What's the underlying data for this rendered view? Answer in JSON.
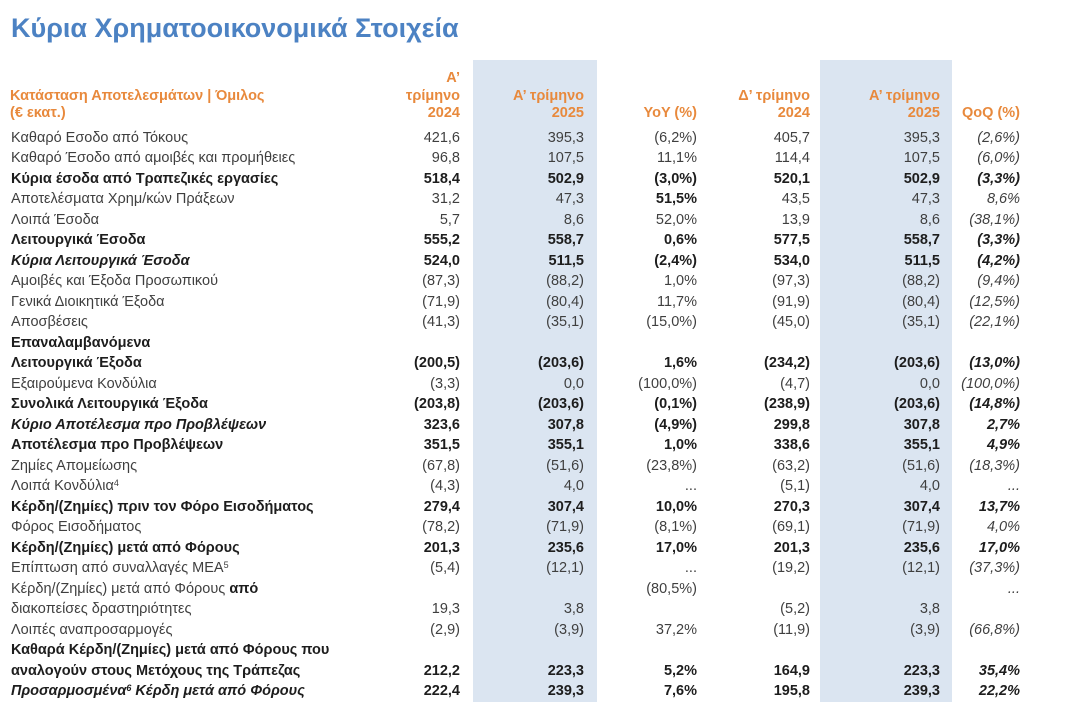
{
  "title": "Κύρια Χρηματοοικονομικά Στοιχεία",
  "colors": {
    "title_blue": "#4c82c3",
    "header_orange": "#e8893c",
    "band_blue": "#dbe5f1"
  },
  "table": {
    "header": {
      "label_line1": "Κατάσταση Αποτελεσμάτων | Όμιλος",
      "label_line2": "(€ εκατ.)",
      "columns": [
        {
          "line1": "Α’ τρίμηνο",
          "line2": "2024",
          "band": false
        },
        {
          "line1": "Α’ τρίμηνο",
          "line2": "2025",
          "band": true
        },
        {
          "line1": "",
          "line2": "YoY (%)",
          "band": false
        },
        {
          "line1": "Δ’ τρίμηνο",
          "line2": "2024",
          "band": false
        },
        {
          "line1": "Α’ τρίμηνο",
          "line2": "2025",
          "band": true
        },
        {
          "line1": "",
          "line2": "QoQ (%)",
          "band": false
        }
      ]
    },
    "rows": [
      {
        "style": "r",
        "label": [
          {
            "t": "Καθαρό Εσοδο από Τόκους"
          }
        ],
        "values": [
          "421,6",
          "395,3",
          "(6,2%)",
          "405,7",
          "395,3",
          "(2,6%)"
        ]
      },
      {
        "style": "r",
        "label": [
          {
            "t": "Καθαρό Έσοδο από αμοιβές και προμήθειες"
          }
        ],
        "values": [
          "96,8",
          "107,5",
          "11,1%",
          "114,4",
          "107,5",
          "(6,0%)"
        ]
      },
      {
        "style": "b",
        "label": [
          {
            "t": "Κύρια έσοδα από Τραπεζικές εργασίες"
          }
        ],
        "values": [
          "518,4",
          "502,9",
          "(3,0%)",
          "520,1",
          "502,9",
          "(3,3%)"
        ]
      },
      {
        "style": "r",
        "label": [
          {
            "t": "Αποτελέσματα Χρημ/κών Πράξεων"
          }
        ],
        "values": [
          "31,2",
          "47,3",
          "51,5%",
          "43,5",
          "47,3",
          "8,6%"
        ],
        "bold_cells": [
          2
        ]
      },
      {
        "style": "r",
        "label": [
          {
            "t": "Λοιπά Έσοδα"
          }
        ],
        "values": [
          "5,7",
          "8,6",
          "52,0%",
          "13,9",
          "8,6",
          "(38,1%)"
        ]
      },
      {
        "style": "b",
        "label": [
          {
            "t": "Λειτουργικά Έσοδα"
          }
        ],
        "values": [
          "555,2",
          "558,7",
          "0,6%",
          "577,5",
          "558,7",
          "(3,3%)"
        ]
      },
      {
        "style": "bi",
        "label": [
          {
            "t": "Κύρια Λειτουργικά Έσοδα"
          }
        ],
        "values": [
          "524,0",
          "511,5",
          "(2,4%)",
          "534,0",
          "511,5",
          "(4,2%)"
        ]
      },
      {
        "style": "r",
        "label": [
          {
            "t": "Αμοιβές και Έξοδα Προσωπικού"
          }
        ],
        "values": [
          "(87,3)",
          "(88,2)",
          "1,0%",
          "(97,3)",
          "(88,2)",
          "(9,4%)"
        ]
      },
      {
        "style": "r",
        "label": [
          {
            "t": "Γενικά Διοικητικά Έξοδα"
          }
        ],
        "values": [
          "(71,9)",
          "(80,4)",
          "11,7%",
          "(91,9)",
          "(80,4)",
          "(12,5%)"
        ]
      },
      {
        "style": "r",
        "label": [
          {
            "t": "Αποσβέσεις"
          }
        ],
        "values": [
          "(41,3)",
          "(35,1)",
          "(15,0%)",
          "(45,0)",
          "(35,1)",
          "(22,1%)"
        ]
      },
      {
        "style": "b",
        "label": [
          {
            "t": "Επαναλαμβανόμενα"
          },
          {
            "br": true
          },
          {
            "t": "Λειτουργικά Έξοδα"
          }
        ],
        "values": [
          "(200,5)",
          "(203,6)",
          "1,6%",
          "(234,2)",
          "(203,6)",
          "(13,0%)"
        ]
      },
      {
        "style": "r",
        "label": [
          {
            "t": "Εξαιρούμενα Κονδύλια"
          }
        ],
        "values": [
          "(3,3)",
          "0,0",
          "(100,0%)",
          "(4,7)",
          "0,0",
          "(100,0%)"
        ]
      },
      {
        "style": "b",
        "label": [
          {
            "t": "Συνολικά Λειτουργικά Έξοδα"
          }
        ],
        "values": [
          "(203,8)",
          "(203,6)",
          "(0,1%)",
          "(238,9)",
          "(203,6)",
          "(14,8%)"
        ]
      },
      {
        "style": "bi",
        "label": [
          {
            "t": "Κύριο Αποτέλεσμα προ Προβλέψεων"
          }
        ],
        "values": [
          "323,6",
          "307,8",
          "(4,9%)",
          "299,8",
          "307,8",
          "2,7%"
        ]
      },
      {
        "style": "b",
        "label": [
          {
            "t": "Αποτέλεσμα προ Προβλέψεων"
          }
        ],
        "values": [
          "351,5",
          "355,1",
          "1,0%",
          "338,6",
          "355,1",
          "4,9%"
        ]
      },
      {
        "style": "r",
        "label": [
          {
            "t": "Ζημίες Απομείωσης"
          }
        ],
        "values": [
          "(67,8)",
          "(51,6)",
          "(23,8%)",
          "(63,2)",
          "(51,6)",
          "(18,3%)"
        ]
      },
      {
        "style": "r",
        "label": [
          {
            "t": "Λοιπά Κονδύλια"
          },
          {
            "t": "4",
            "sup": true
          }
        ],
        "values": [
          "(4,3)",
          "4,0",
          "...",
          "(5,1)",
          "4,0",
          "..."
        ]
      },
      {
        "style": "b",
        "label": [
          {
            "t": "Κέρδη/(Ζημίες) πριν τον Φόρο Εισοδήματος"
          }
        ],
        "values": [
          "279,4",
          "307,4",
          "10,0%",
          "270,3",
          "307,4",
          "13,7%"
        ]
      },
      {
        "style": "r",
        "label": [
          {
            "t": "Φόρος Εισοδήματος"
          }
        ],
        "values": [
          "(78,2)",
          "(71,9)",
          "(8,1%)",
          "(69,1)",
          "(71,9)",
          "4,0%"
        ]
      },
      {
        "style": "b",
        "label": [
          {
            "t": "Κέρδη/(Ζημίες) μετά από Φόρους"
          }
        ],
        "values": [
          "201,3",
          "235,6",
          "17,0%",
          "201,3",
          "235,6",
          "17,0%"
        ]
      },
      {
        "style": "r",
        "label": [
          {
            "t": "Επίπτωση από συναλλαγές ΜΕΑ"
          },
          {
            "t": "5",
            "sup": true
          }
        ],
        "values": [
          "(5,4)",
          "(12,1)",
          "...",
          "(19,2)",
          "(12,1)",
          "(37,3%)"
        ]
      },
      {
        "style": "r",
        "label": [
          {
            "t": "Κέρδη/(Ζημίες) μετά από Φόρους "
          },
          {
            "t": "από",
            "b": true
          },
          {
            "br": true
          },
          {
            "t": "διακοπείσες δραστηριότητες"
          }
        ],
        "values": [
          "19,3",
          "3,8",
          "(80,5%)",
          "(5,2)",
          "3,8",
          "..."
        ],
        "top_cells": [
          2,
          5
        ]
      },
      {
        "style": "r",
        "label": [
          {
            "t": "Λοιπές αναπροσαρμογές"
          }
        ],
        "values": [
          "(2,9)",
          "(3,9)",
          "37,2%",
          "(11,9)",
          "(3,9)",
          "(66,8%)"
        ]
      },
      {
        "style": "b",
        "label": [
          {
            "t": "Καθαρά Κέρδη/(Ζημίες) μετά από Φόρους που"
          },
          {
            "br": true
          },
          {
            "t": "αναλογούν στους Μετόχους της Τράπεζας"
          }
        ],
        "values": [
          "212,2",
          "223,3",
          "5,2%",
          "164,9",
          "223,3",
          "35,4%"
        ]
      },
      {
        "style": "bi",
        "label": [
          {
            "t": "Προσαρμοσμένα"
          },
          {
            "t": "6",
            "sup": true
          },
          {
            "t": " Κέρδη μετά από Φόρους"
          }
        ],
        "values": [
          "222,4",
          "239,3",
          "7,6%",
          "195,8",
          "239,3",
          "22,2%"
        ]
      }
    ]
  }
}
